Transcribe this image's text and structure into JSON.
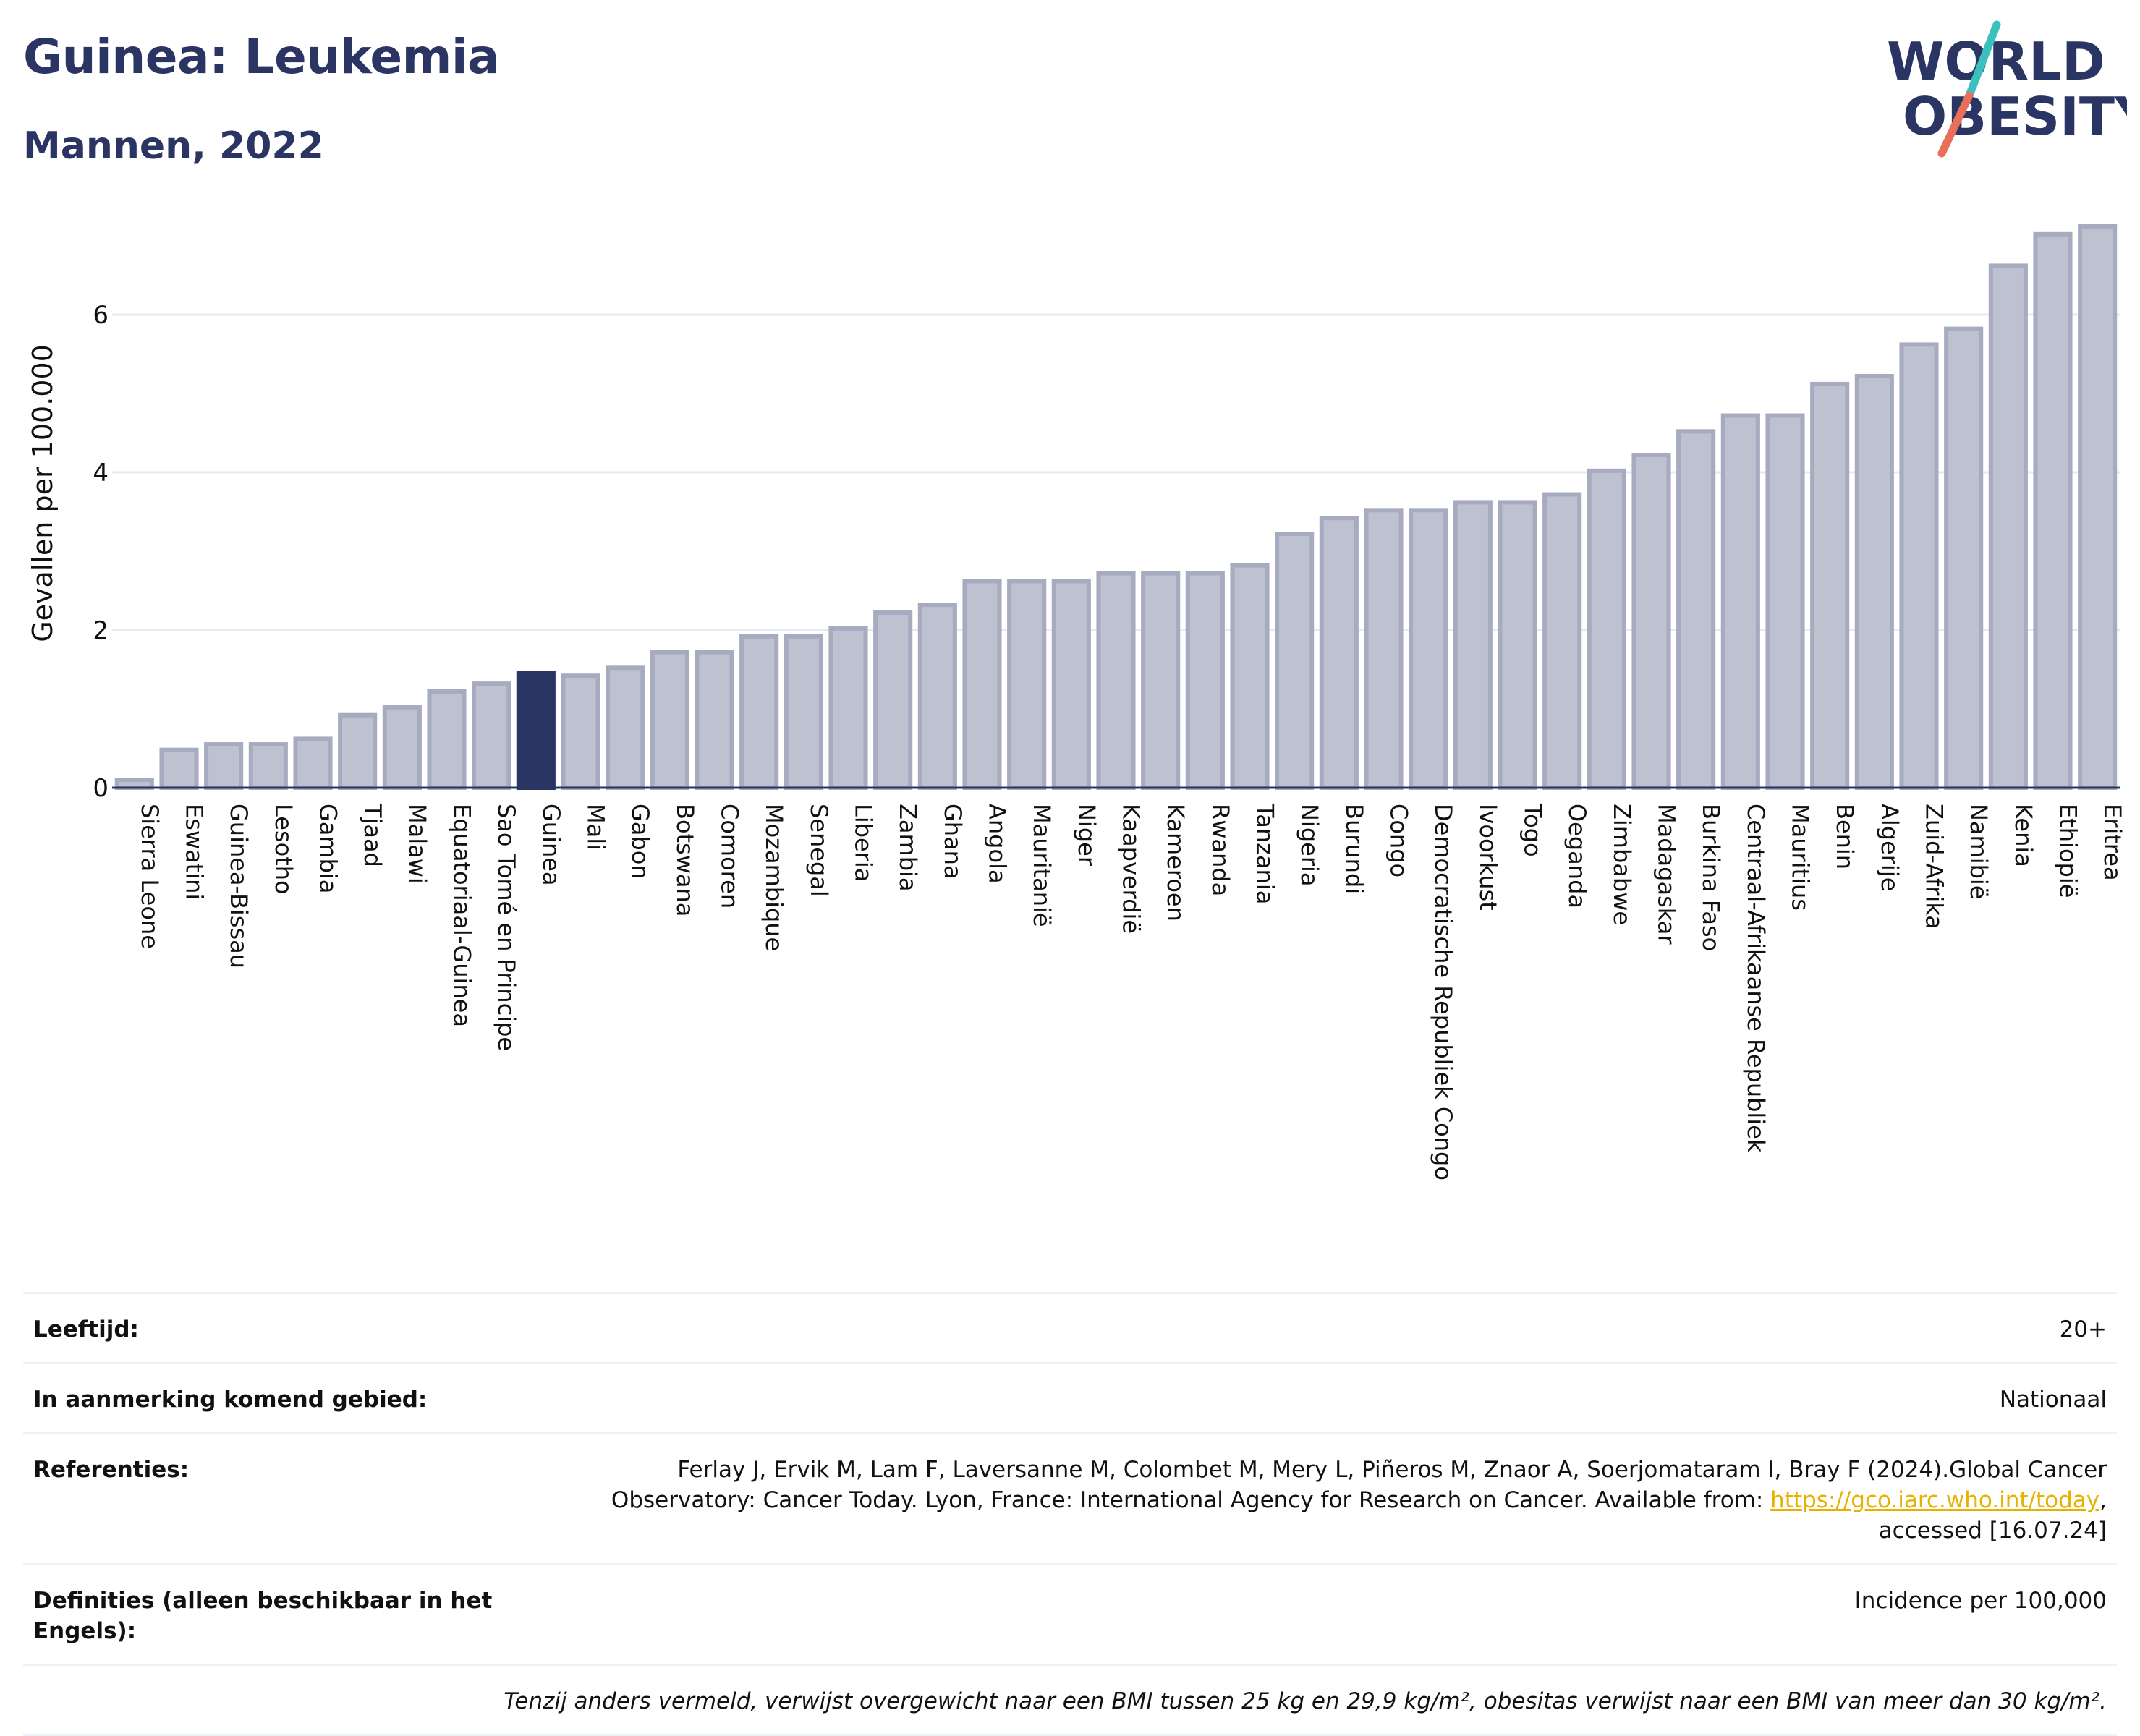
{
  "header": {
    "title": "Guinea: Leukemia",
    "subtitle": "Mannen, 2022"
  },
  "logo": {
    "line1": "WORLD",
    "line2": "OBESITY",
    "colors": {
      "text": "#2b3563",
      "slash_top": "#3bbfbf",
      "slash_bottom": "#e8705a"
    }
  },
  "chart_data": {
    "type": "bar",
    "title": "",
    "xlabel": "",
    "ylabel": "Gevallen per 100.000",
    "ylim": [
      0,
      7.2
    ],
    "yticks": [
      0,
      2,
      4,
      6
    ],
    "grid": true,
    "highlight": "Guinea",
    "colors": {
      "bar": "#bec2d0",
      "bar_border": "#a6abc0",
      "highlight": "#2b3563",
      "grid": "#e6e9f0",
      "axis": "#2b3563"
    },
    "categories": [
      "Sierra Leone",
      "Eswatini",
      "Guinea-Bissau",
      "Lesotho",
      "Gambia",
      "Tjaad",
      "Malawi",
      "Equatoriaal-Guinea",
      "Sao Tomé en Principe",
      "Guinea",
      "Mali",
      "Gabon",
      "Botswana",
      "Comoren",
      "Mozambique",
      "Senegal",
      "Liberia",
      "Zambia",
      "Ghana",
      "Angola",
      "Mauritanië",
      "Niger",
      "Kaapverdië",
      "Kameroen",
      "Rwanda",
      "Tanzania",
      "Nigeria",
      "Burundi",
      "Congo",
      "Democratische Republiek Congo",
      "Ivoorkust",
      "Togo",
      "Oeganda",
      "Zimbabwe",
      "Madagaskar",
      "Burkina Faso",
      "Centraal-Afrikaanse Republiek",
      "Mauritius",
      "Benin",
      "Algerije",
      "Zuid-Afrika",
      "Namibië",
      "Kenia",
      "Ethiopië",
      "Eritrea"
    ],
    "values": [
      0.1,
      0.48,
      0.55,
      0.55,
      0.62,
      0.92,
      1.02,
      1.22,
      1.32,
      1.45,
      1.42,
      1.52,
      1.72,
      1.72,
      1.92,
      1.92,
      2.02,
      2.22,
      2.32,
      2.62,
      2.62,
      2.62,
      2.72,
      2.72,
      2.72,
      2.82,
      3.22,
      3.42,
      3.52,
      3.52,
      3.62,
      3.62,
      3.72,
      4.02,
      4.22,
      4.52,
      4.72,
      4.72,
      5.12,
      5.22,
      5.62,
      5.82,
      6.62,
      7.02,
      7.12
    ]
  },
  "meta": {
    "age_label": "Leeftijd:",
    "age_value": "20+",
    "area_label": "In aanmerking komend gebied:",
    "area_value": "Nationaal",
    "ref_label": "Referenties:",
    "ref_text1": "Ferlay J, Ervik M, Lam F, Laversanne M, Colombet M, Mery L, Piñeros M, Znaor A, Soerjomataram I, Bray F (2024).Global Cancer",
    "ref_text2": "Observatory: Cancer Today. Lyon, France: International Agency for Research on Cancer. Available from:",
    "ref_link": "https://gco.iarc.who.int/today",
    "ref_text3": ",",
    "ref_text4": "accessed [16.07.24]",
    "def_label": "Definities (alleen beschikbaar in het Engels):",
    "def_value": "Incidence per 100,000",
    "note": "Tenzij anders vermeld, verwijst overgewicht naar een BMI tussen 25 kg en 29,9 kg/m², obesitas verwijst naar een BMI van meer dan 30 kg/m²."
  }
}
